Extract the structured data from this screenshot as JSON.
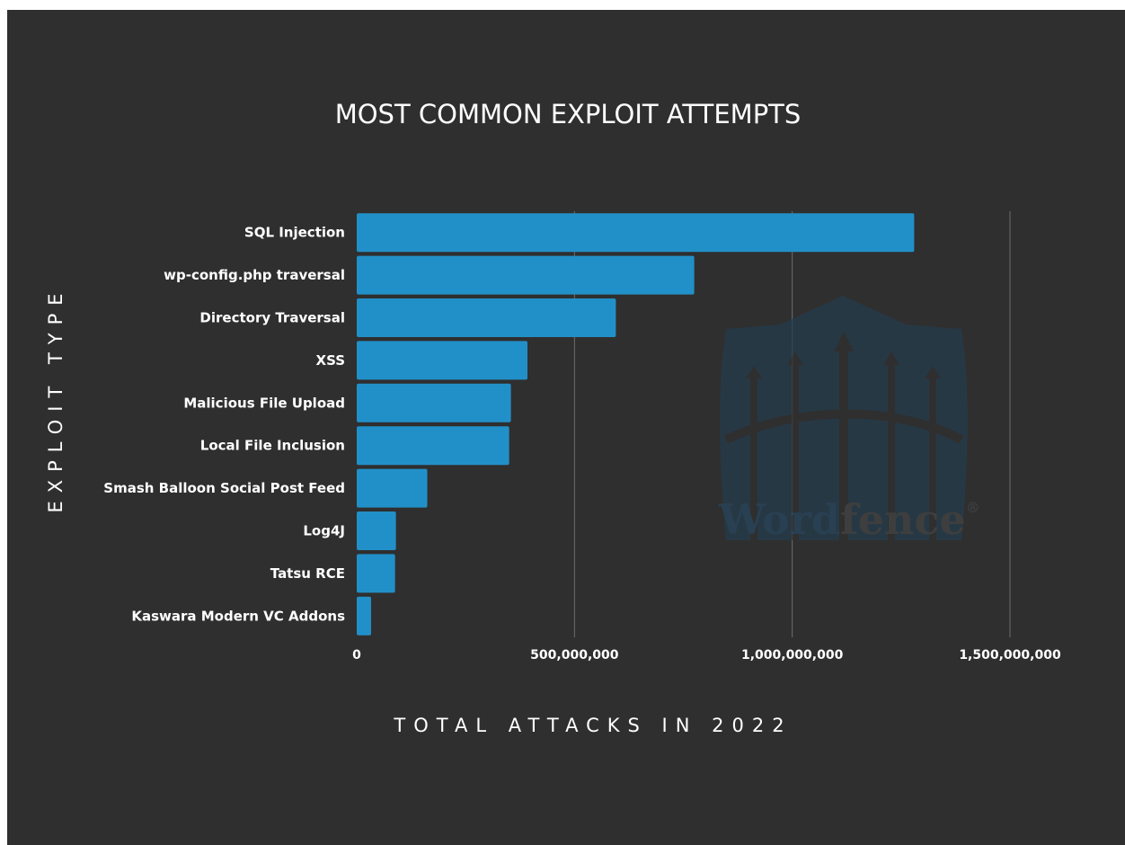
{
  "chart_data": {
    "type": "bar",
    "orientation": "horizontal",
    "title": "MOST COMMON EXPLOIT ATTEMPTS",
    "xlabel": "TOTAL ATTACKS IN 2022",
    "ylabel": "EXPLOIT TYPE",
    "categories": [
      "SQL Injection",
      "wp-config.php traversal",
      "Directory Traversal",
      "XSS",
      "Malicious File Upload",
      "Local File Inclusion",
      "Smash Balloon Social Post Feed",
      "Log4J",
      "Tatsu RCE",
      "Kaswara Modern VC Addons"
    ],
    "values": [
      1280000000,
      775000000,
      595000000,
      392000000,
      354000000,
      350000000,
      162000000,
      90000000,
      88000000,
      33000000
    ],
    "xlim": [
      0,
      1500000000
    ],
    "xticks": [
      0,
      500000000,
      1000000000,
      1500000000
    ],
    "xtick_labels": [
      "0",
      "500,000,000",
      "1,000,000,000",
      "1,500,000,000"
    ],
    "grid": true,
    "bar_color": "#2290c8",
    "background_color": "#2f2f2f"
  },
  "watermark": {
    "text_part1": "Word",
    "text_part2": "fence",
    "symbol": "®"
  }
}
